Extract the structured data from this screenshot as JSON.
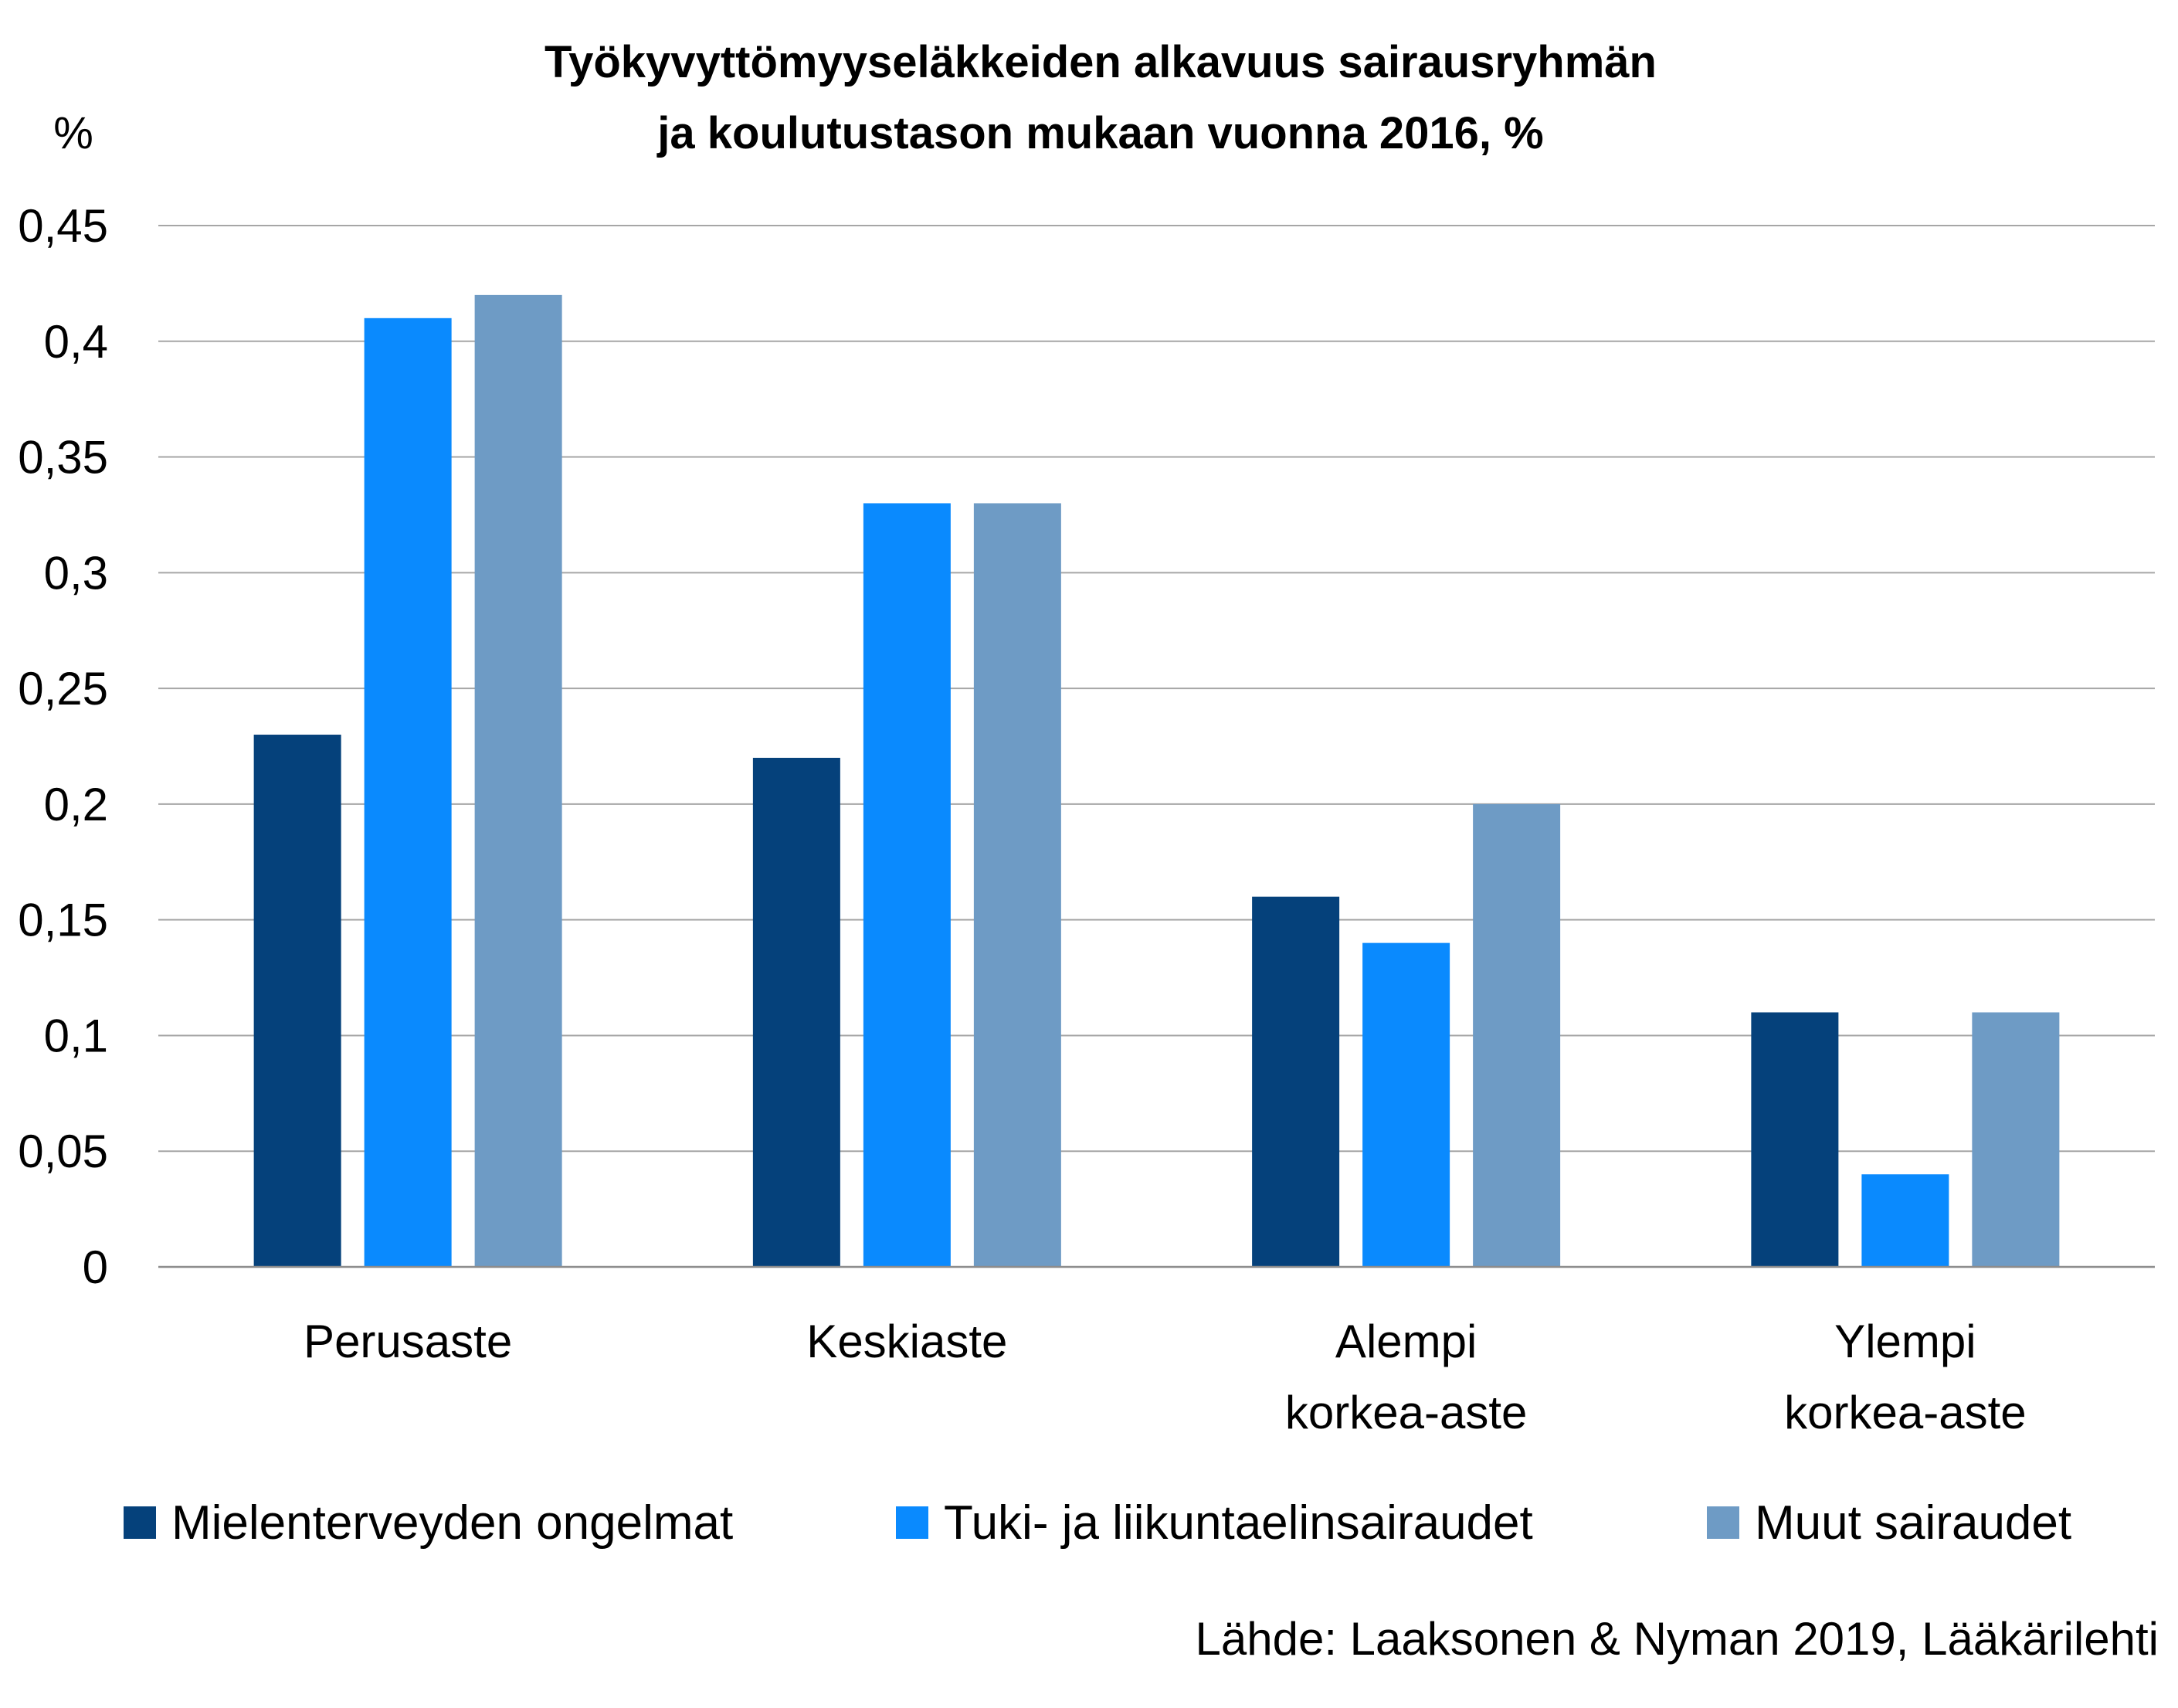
{
  "chart_data": {
    "type": "bar",
    "title_lines": [
      "Työkyvyttömyyseläkkeiden alkavuus sairausryhmän",
      "ja koulutustason mukaan vuonna 2016, %"
    ],
    "ylabel": "%",
    "ylim": [
      0,
      0.45
    ],
    "yticks": [
      0,
      0.05,
      0.1,
      0.15,
      0.2,
      0.25,
      0.3,
      0.35,
      0.4,
      0.45
    ],
    "ytick_labels": [
      "0",
      "0,05",
      "0,1",
      "0,15",
      "0,2",
      "0,25",
      "0,3",
      "0,35",
      "0,4",
      "0,45"
    ],
    "grid": true,
    "legend_position": "bottom",
    "categories": [
      [
        "Perusaste"
      ],
      [
        "Keskiaste"
      ],
      [
        "Alempi",
        "korkea-aste"
      ],
      [
        "Ylempi",
        "korkea-aste"
      ]
    ],
    "series": [
      {
        "name": "Mielenterveyden ongelmat",
        "color": "#05417b",
        "values": [
          0.23,
          0.22,
          0.16,
          0.11
        ]
      },
      {
        "name": "Tuki- ja liikuntaelinsairaudet",
        "color": "#0a8afe",
        "values": [
          0.41,
          0.33,
          0.14,
          0.04
        ]
      },
      {
        "name": "Muut sairaudet",
        "color": "#6e9bc5",
        "values": [
          0.42,
          0.33,
          0.2,
          0.11
        ]
      }
    ],
    "source": "Lähde: Laaksonen & Nyman 2019, Lääkärilehti"
  }
}
